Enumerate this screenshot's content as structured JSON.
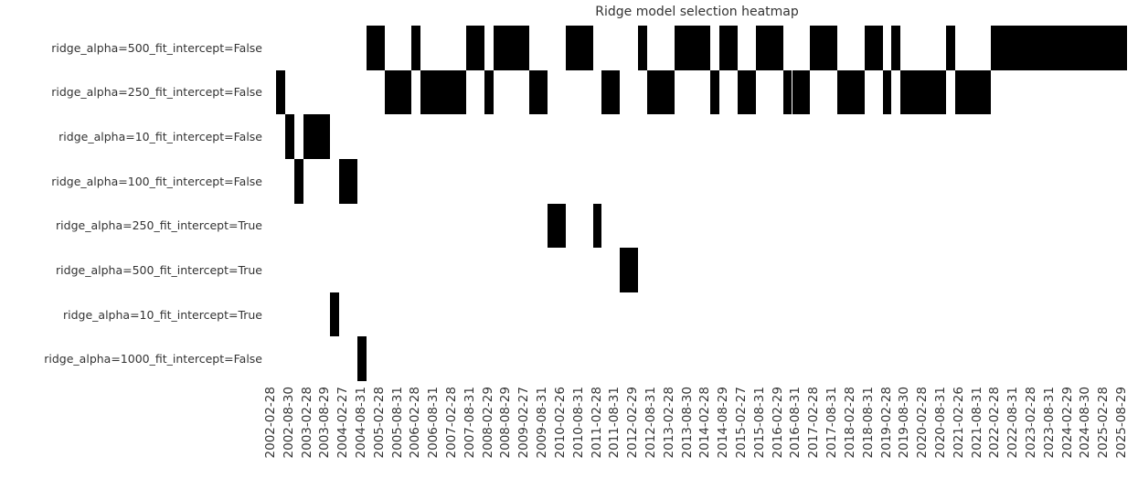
{
  "title": "Ridge model selection heatmap",
  "colors": {
    "background": "#ffffff",
    "cell_selected": "#000000",
    "cell_unselected": "#ffffff",
    "text": "#333333"
  },
  "chart_data": {
    "type": "heatmap",
    "title": "Ridge model selection heatmap",
    "grid": false,
    "legend": null,
    "colorbar": null,
    "value_semantics": {
      "selected": "black cell (model chosen at that date)",
      "unselected": "white cell"
    },
    "y_labels": [
      "ridge_alpha=500_fit_intercept=False",
      "ridge_alpha=250_fit_intercept=False",
      "ridge_alpha=10_fit_intercept=False",
      "ridge_alpha=100_fit_intercept=False",
      "ridge_alpha=250_fit_intercept=True",
      "ridge_alpha=500_fit_intercept=True",
      "ridge_alpha=10_fit_intercept=True",
      "ridge_alpha=1000_fit_intercept=False"
    ],
    "n_rows": 8,
    "n_columns": 95,
    "column_frequency": "quarterly",
    "x_tick_step": 2,
    "x_tick_labels": [
      "2002-02-28",
      "2002-08-30",
      "2003-02-28",
      "2003-08-29",
      "2004-02-27",
      "2004-08-31",
      "2005-02-28",
      "2005-08-31",
      "2006-02-28",
      "2006-08-31",
      "2007-02-28",
      "2007-08-31",
      "2008-02-29",
      "2008-08-29",
      "2009-02-27",
      "2009-08-31",
      "2010-02-26",
      "2010-08-31",
      "2011-02-28",
      "2011-08-31",
      "2012-02-29",
      "2012-08-31",
      "2013-02-28",
      "2013-08-30",
      "2014-02-28",
      "2014-08-29",
      "2015-02-27",
      "2015-08-31",
      "2016-02-29",
      "2016-08-31",
      "2017-02-28",
      "2017-08-31",
      "2018-02-28",
      "2018-08-31",
      "2019-02-28",
      "2019-08-30",
      "2020-02-28",
      "2020-08-31",
      "2021-02-26",
      "2021-08-31",
      "2022-02-28",
      "2022-08-31",
      "2023-02-28",
      "2023-08-31",
      "2024-02-29",
      "2024-08-30",
      "2025-02-28",
      "2025-08-29"
    ],
    "selected_row_per_column": [
      null,
      1,
      2,
      3,
      2,
      2,
      2,
      6,
      3,
      3,
      7,
      0,
      0,
      1,
      1,
      1,
      0,
      1,
      1,
      1,
      1,
      1,
      0,
      0,
      1,
      0,
      0,
      0,
      0,
      1,
      1,
      4,
      4,
      0,
      0,
      0,
      4,
      1,
      1,
      5,
      5,
      0,
      1,
      1,
      1,
      0,
      0,
      0,
      0,
      1,
      0,
      0,
      1,
      1,
      0,
      0,
      0,
      1,
      1,
      1,
      0,
      0,
      0,
      1,
      1,
      1,
      0,
      0,
      1,
      0,
      1,
      1,
      1,
      1,
      1,
      0,
      1,
      1,
      1,
      1,
      0,
      0,
      0,
      0,
      0,
      0,
      0,
      0,
      0,
      0,
      0,
      0,
      0,
      0,
      0
    ]
  }
}
